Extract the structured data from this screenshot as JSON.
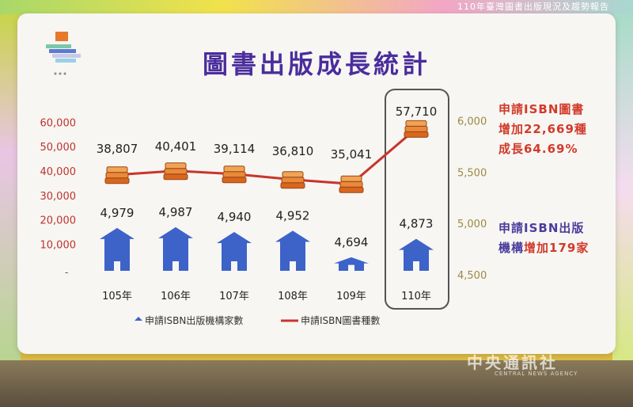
{
  "header": {
    "caption": "110年臺灣圖書出版現況及趨勢報告"
  },
  "slide": {
    "title": "圖書出版成長統計"
  },
  "notes": {
    "books": [
      "申請ISBN圖書",
      "增加22,669種",
      "成長64.69%"
    ],
    "publishers": {
      "line1": "申請ISBN出版",
      "line2_prefix": "機構",
      "line2_highlight": "增加179家"
    }
  },
  "watermark": {
    "main": "中央通訊社",
    "sub": "CENTRAL NEWS AGENCY"
  },
  "colors": {
    "title": "#4a2d9c",
    "line": "#c8352c",
    "house": "#3d63c9",
    "book": "#e07a2e",
    "left_axis": "#c0322b",
    "right_axis": "#9a8a40"
  },
  "chart_data": {
    "type": "bar",
    "categories": [
      "105年",
      "106年",
      "107年",
      "108年",
      "109年",
      "110年"
    ],
    "series": [
      {
        "name": "申請ISBN出版機構家數",
        "axis": "right",
        "marker": "house-icon",
        "values": [
          4979,
          4987,
          4940,
          4952,
          4694,
          4873
        ]
      },
      {
        "name": "申請ISBN圖書種數",
        "axis": "left",
        "marker": "book-stack-icon",
        "values": [
          38807,
          40401,
          39114,
          36810,
          35041,
          57710
        ]
      }
    ],
    "value_labels": {
      "books": [
        "38,807",
        "40,401",
        "39,114",
        "36,810",
        "35,041",
        "57,710"
      ],
      "publishers": [
        "4,979",
        "4,987",
        "4,940",
        "4,952",
        "4,694",
        "4,873"
      ]
    },
    "left_axis": {
      "ticks": [
        10000,
        20000,
        30000,
        40000,
        50000,
        60000
      ],
      "tick_labels": [
        "10,000",
        "20,000",
        "30,000",
        "40,000",
        "50,000",
        "60,000"
      ]
    },
    "right_axis": {
      "ticks": [
        4500,
        5000,
        5500,
        6000
      ],
      "tick_labels": [
        "4,500",
        "5,000",
        "5,500",
        "6,000"
      ]
    },
    "legend": [
      "申請ISBN出版機構家數",
      "申請ISBN圖書種數"
    ],
    "highlight_category": "110年"
  }
}
